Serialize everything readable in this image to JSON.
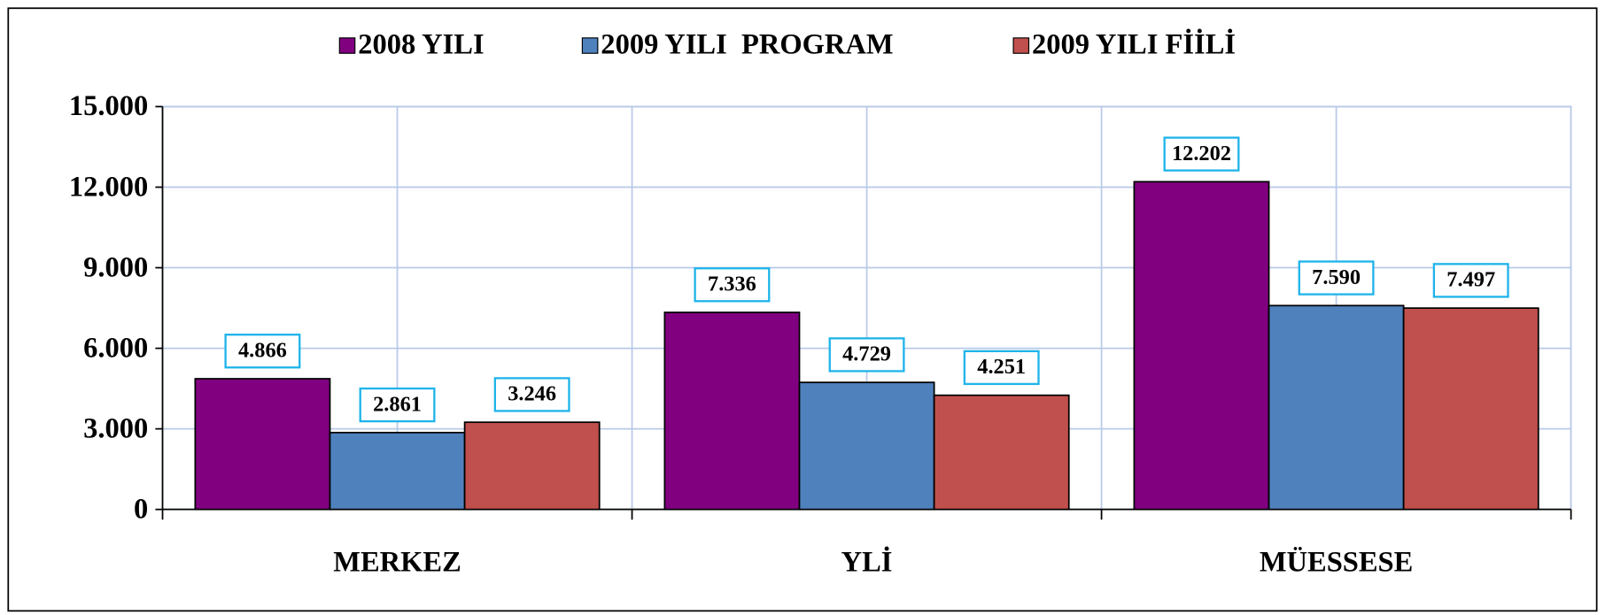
{
  "chart_data": {
    "type": "bar",
    "categories": [
      "MERKEZ",
      "YLİ",
      "MÜESSESE"
    ],
    "series": [
      {
        "name": "2008 YILI",
        "color": "#800080",
        "values": [
          4866,
          7336,
          12202
        ],
        "value_labels": [
          "4.866",
          "7.336",
          "12.202"
        ]
      },
      {
        "name": "2009 YILI  PROGRAM",
        "color": "#4f81bd",
        "values": [
          2861,
          4729,
          7590
        ],
        "value_labels": [
          "2.861",
          "4.729",
          "7.590"
        ]
      },
      {
        "name": "2009 YILI FİİLİ",
        "color": "#c0504d",
        "values": [
          3246,
          4251,
          7497
        ],
        "value_labels": [
          "3.246",
          "4.251",
          "7.497"
        ]
      }
    ],
    "ylim": [
      0,
      15000
    ],
    "yticks": [
      0,
      {
        "value": 3000,
        "label": "3.000"
      },
      {
        "value": 6000,
        "label": "6.000"
      },
      {
        "value": 9000,
        "label": "9.000"
      },
      {
        "value": 12000,
        "label": "12.000"
      },
      {
        "value": 15000,
        "label": "15.000"
      }
    ],
    "grid": true,
    "legend": "top"
  }
}
